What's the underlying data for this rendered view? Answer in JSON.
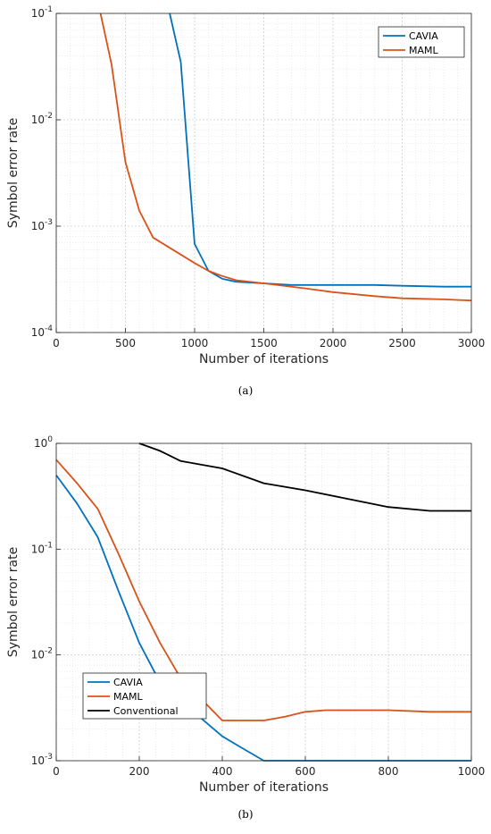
{
  "chart_data": [
    {
      "type": "line",
      "caption": "(a)",
      "xlabel": "Number of iterations",
      "ylabel": "Symbol error rate",
      "yscale": "log",
      "xlim": [
        0,
        3000
      ],
      "ylim": [
        0.0001,
        0.1
      ],
      "xticks": [
        "0",
        "500",
        "1000",
        "1500",
        "2000",
        "2500",
        "3000"
      ],
      "yticks": [
        {
          "base": "10",
          "exp": "-4"
        },
        {
          "base": "10",
          "exp": "-3"
        },
        {
          "base": "10",
          "exp": "-2"
        },
        {
          "base": "10",
          "exp": "-1"
        }
      ],
      "grid": true,
      "legend": "top-right",
      "series": [
        {
          "name": "CAVIA",
          "color": "#0072BD",
          "x": [
            820,
            900,
            1000,
            1100,
            1200,
            1300,
            1500,
            1700,
            2000,
            2300,
            2500,
            2800,
            3000
          ],
          "y": [
            0.1,
            0.035,
            0.00068,
            0.00038,
            0.00032,
            0.0003,
            0.00029,
            0.00028,
            0.00028,
            0.00028,
            0.000275,
            0.00027,
            0.00027
          ]
        },
        {
          "name": "MAML",
          "color": "#D95319",
          "x": [
            320,
            400,
            500,
            600,
            700,
            800,
            900,
            1000,
            1100,
            1200,
            1300,
            1500,
            1800,
            2000,
            2300,
            2500,
            2800,
            3000
          ],
          "y": [
            0.1,
            0.033,
            0.004,
            0.0014,
            0.00078,
            0.00065,
            0.00054,
            0.00045,
            0.00038,
            0.00034,
            0.00031,
            0.00029,
            0.00026,
            0.00024,
            0.00022,
            0.00021,
            0.000205,
            0.0002
          ]
        }
      ]
    },
    {
      "type": "line",
      "caption": "(b)",
      "xlabel": "Number of iterations",
      "ylabel": "Symbol error rate",
      "yscale": "log",
      "xlim": [
        0,
        1000
      ],
      "ylim": [
        0.001,
        1
      ],
      "xticks": [
        "0",
        "200",
        "400",
        "600",
        "800",
        "1000"
      ],
      "yticks": [
        {
          "base": "10",
          "exp": "-3"
        },
        {
          "base": "10",
          "exp": "-2"
        },
        {
          "base": "10",
          "exp": "-1"
        },
        {
          "base": "10",
          "exp": "0"
        }
      ],
      "grid": true,
      "legend": "bottom-left",
      "series": [
        {
          "name": "CAVIA",
          "color": "#0072BD",
          "x": [
            0,
            50,
            100,
            150,
            200,
            250,
            300,
            350,
            400,
            450,
            500,
            600,
            700,
            800,
            900,
            1000
          ],
          "y": [
            0.5,
            0.27,
            0.13,
            0.04,
            0.013,
            0.0055,
            0.0035,
            0.0025,
            0.0017,
            0.0013,
            0.001,
            0.001,
            0.001,
            0.001,
            0.001,
            0.001
          ]
        },
        {
          "name": "MAML",
          "color": "#D95319",
          "x": [
            0,
            50,
            100,
            150,
            200,
            250,
            300,
            350,
            400,
            450,
            500,
            550,
            600,
            650,
            700,
            800,
            900,
            1000
          ],
          "y": [
            0.7,
            0.42,
            0.24,
            0.09,
            0.032,
            0.013,
            0.006,
            0.0038,
            0.0024,
            0.0024,
            0.0024,
            0.0026,
            0.0029,
            0.003,
            0.003,
            0.003,
            0.0029,
            0.0029
          ]
        },
        {
          "name": "Conventional",
          "color": "#000000",
          "x": [
            200,
            250,
            300,
            400,
            500,
            600,
            700,
            800,
            900,
            1000
          ],
          "y": [
            1.0,
            0.85,
            0.68,
            0.58,
            0.42,
            0.36,
            0.3,
            0.25,
            0.23,
            0.23
          ]
        }
      ]
    }
  ]
}
